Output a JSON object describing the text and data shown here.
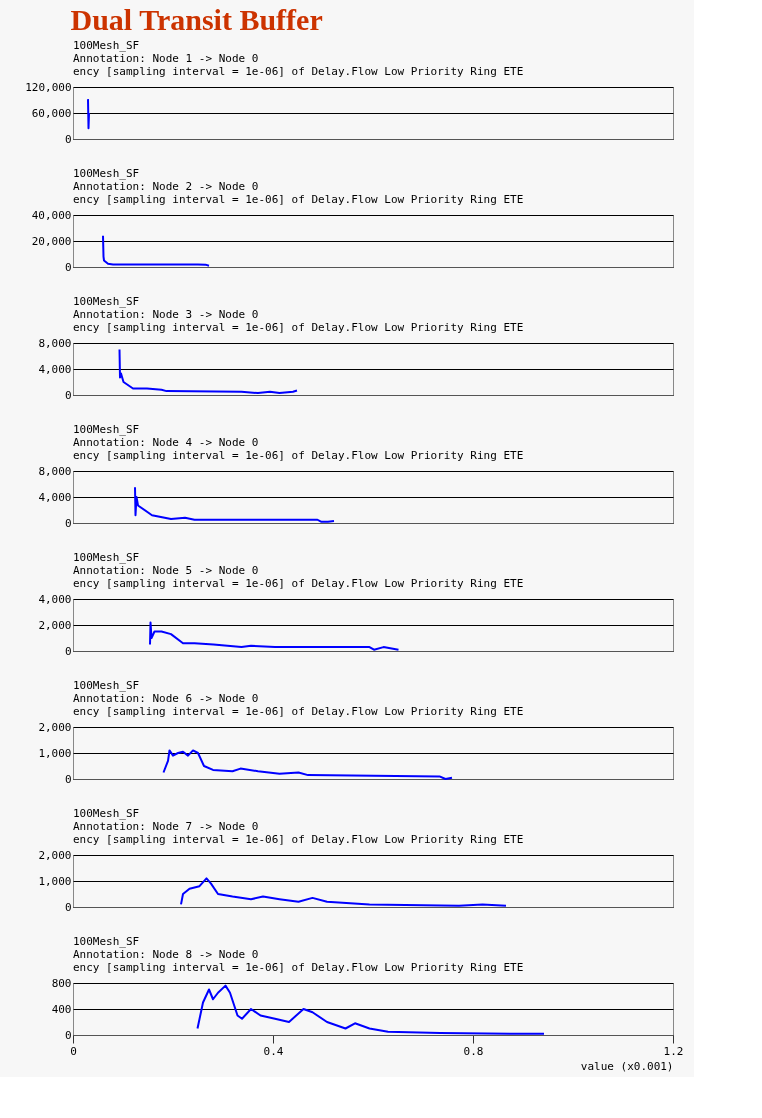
{
  "chart_data": [
    {
      "type": "line",
      "title": "100Mesh_SF",
      "subtitle": "Annotation: Node 1 -> Node 0",
      "annotations": [
        "Dual Transit Buffer",
        "ency [sampling interval = 1e-06] of Delay.Flow Low Priority Ring ETE"
      ],
      "xlim": [
        0,
        1.2
      ],
      "xticks": [
        0,
        0.4,
        0.8,
        1.2
      ],
      "ylim": [
        0,
        120000
      ],
      "yticks": [
        0,
        {
          "value": 60000,
          "label": "60,000"
        },
        {
          "value": 120000,
          "label": "120,000"
        }
      ],
      "grid": "y",
      "tick_labels": "y",
      "series": [
        {
          "color": "#0000ff",
          "x": [
            0.03,
            0.031,
            0.032
          ],
          "values": [
            92000,
            25000,
            60000
          ]
        }
      ]
    },
    {
      "type": "line",
      "title": "100Mesh_SF",
      "subtitle": "Annotation: Node 2 -> Node 0",
      "annotations": [
        "ency [sampling interval = 1e-06] of Delay.Flow Low Priority Ring ETE"
      ],
      "xlim": [
        0,
        1.2
      ],
      "xticks": [
        0,
        0.4,
        0.8,
        1.2
      ],
      "ylim": [
        0,
        40000
      ],
      "yticks": [
        0,
        {
          "value": 20000,
          "label": "20,000"
        },
        {
          "value": 40000,
          "label": "40,000"
        }
      ],
      "grid": "y",
      "tick_labels": "y",
      "series": [
        {
          "color": "#0000ff",
          "x": [
            0.06,
            0.061,
            0.062,
            0.07,
            0.08,
            0.15,
            0.25,
            0.265,
            0.272
          ],
          "values": [
            24000,
            8000,
            5000,
            2500,
            2000,
            2000,
            2000,
            1800,
            1000
          ]
        }
      ]
    },
    {
      "type": "line",
      "title": "100Mesh_SF",
      "subtitle": "Annotation: Node 3 -> Node 0",
      "annotations": [
        "ency [sampling interval = 1e-06] of Delay.Flow Low Priority Ring ETE"
      ],
      "xlim": [
        0,
        1.2
      ],
      "xticks": [
        0,
        0.4,
        0.8,
        1.2
      ],
      "ylim": [
        0,
        8000
      ],
      "yticks": [
        0,
        {
          "value": 4000,
          "label": "4,000"
        },
        {
          "value": 8000,
          "label": "8,000"
        }
      ],
      "grid": "y",
      "tick_labels": "y",
      "series": [
        {
          "color": "#0000ff",
          "x": [
            0.093,
            0.094,
            0.096,
            0.101,
            0.12,
            0.148,
            0.177,
            0.187,
            0.337,
            0.37,
            0.394,
            0.413,
            0.44,
            0.448
          ],
          "values": [
            7000,
            2700,
            3300,
            2000,
            1000,
            1000,
            800,
            600,
            500,
            300,
            500,
            300,
            500,
            700
          ]
        }
      ]
    },
    {
      "type": "line",
      "title": "100Mesh_SF",
      "subtitle": "Annotation: Node 4 -> Node 0",
      "annotations": [
        "ency [sampling interval = 1e-06] of Delay.Flow Low Priority Ring ETE"
      ],
      "xlim": [
        0,
        1.2
      ],
      "xticks": [
        0,
        0.4,
        0.8,
        1.2
      ],
      "ylim": [
        0,
        8000
      ],
      "yticks": [
        0,
        {
          "value": 4000,
          "label": "4,000"
        },
        {
          "value": 8000,
          "label": "8,000"
        }
      ],
      "grid": "y",
      "tick_labels": "y",
      "series": [
        {
          "color": "#0000ff",
          "x": [
            0.124,
            0.125,
            0.127,
            0.13,
            0.158,
            0.196,
            0.224,
            0.243,
            0.489,
            0.496,
            0.51,
            0.522
          ],
          "values": [
            5500,
            1200,
            4000,
            2700,
            1200,
            600,
            800,
            500,
            500,
            200,
            200,
            300
          ]
        }
      ]
    },
    {
      "type": "line",
      "title": "100Mesh_SF",
      "subtitle": "Annotation: Node 5 -> Node 0",
      "annotations": [
        "ency [sampling interval = 1e-06] of Delay.Flow Low Priority Ring ETE"
      ],
      "xlim": [
        0,
        1.2
      ],
      "xticks": [
        0,
        0.4,
        0.8,
        1.2
      ],
      "ylim": [
        0,
        4000
      ],
      "yticks": [
        0,
        {
          "value": 2000,
          "label": "2,000"
        },
        {
          "value": 4000,
          "label": "4,000"
        }
      ],
      "grid": "y",
      "tick_labels": "y",
      "series": [
        {
          "color": "#0000ff",
          "x": [
            0.154,
            0.155,
            0.157,
            0.163,
            0.177,
            0.196,
            0.22,
            0.243,
            0.281,
            0.337,
            0.356,
            0.404,
            0.593,
            0.602,
            0.621,
            0.651
          ],
          "values": [
            500,
            2200,
            1000,
            1500,
            1500,
            1300,
            600,
            600,
            500,
            300,
            400,
            300,
            300,
            100,
            300,
            100
          ]
        }
      ]
    },
    {
      "type": "line",
      "title": "100Mesh_SF",
      "subtitle": "Annotation: Node 6 -> Node 0",
      "annotations": [
        "ency [sampling interval = 1e-06] of Delay.Flow Low Priority Ring ETE"
      ],
      "xlim": [
        0,
        1.2
      ],
      "xticks": [
        0,
        0.4,
        0.8,
        1.2
      ],
      "ylim": [
        0,
        2000
      ],
      "yticks": [
        0,
        {
          "value": 1000,
          "label": "1,000"
        },
        {
          "value": 2000,
          "label": "2,000"
        }
      ],
      "grid": "y",
      "tick_labels": "y",
      "series": [
        {
          "color": "#0000ff",
          "x": [
            0.181,
            0.19,
            0.193,
            0.2,
            0.21,
            0.22,
            0.23,
            0.24,
            0.25,
            0.262,
            0.28,
            0.319,
            0.335,
            0.37,
            0.413,
            0.451,
            0.47,
            0.733,
            0.745,
            0.758
          ],
          "values": [
            250,
            700,
            1100,
            900,
            1000,
            1050,
            900,
            1100,
            1000,
            500,
            350,
            300,
            400,
            300,
            200,
            250,
            150,
            100,
            0,
            50
          ]
        }
      ]
    },
    {
      "type": "line",
      "title": "100Mesh_SF",
      "subtitle": "Annotation: Node 7 -> Node 0",
      "annotations": [
        "ency [sampling interval = 1e-06] of Delay.Flow Low Priority Ring ETE"
      ],
      "xlim": [
        0,
        1.2
      ],
      "xticks": [
        0,
        0.4,
        0.8,
        1.2
      ],
      "ylim": [
        0,
        2000
      ],
      "yticks": [
        0,
        {
          "value": 1000,
          "label": "1,000"
        },
        {
          "value": 2000,
          "label": "2,000"
        }
      ],
      "grid": "y",
      "tick_labels": "y",
      "series": [
        {
          "color": "#0000ff",
          "x": [
            0.216,
            0.22,
            0.233,
            0.253,
            0.267,
            0.276,
            0.29,
            0.319,
            0.356,
            0.38,
            0.413,
            0.451,
            0.479,
            0.508,
            0.593,
            0.772,
            0.819,
            0.866
          ],
          "values": [
            100,
            500,
            700,
            800,
            1100,
            900,
            500,
            400,
            300,
            400,
            300,
            200,
            350,
            200,
            100,
            50,
            100,
            50
          ]
        }
      ]
    },
    {
      "type": "line",
      "title": "100Mesh_SF",
      "subtitle": "Annotation: Node 8 -> Node 0",
      "annotations": [
        "ency [sampling interval = 1e-06] of Delay.Flow Low Priority Ring ETE"
      ],
      "xlabel": "value (x0.001)",
      "xlim": [
        0,
        1.2
      ],
      "xticks": [
        0,
        0.4,
        0.8,
        1.2
      ],
      "ylim": [
        0,
        800
      ],
      "yticks": [
        0,
        400,
        800
      ],
      "grid": "y",
      "series": [
        {
          "color": "#0000ff",
          "x": [
            0.249,
            0.26,
            0.272,
            0.28,
            0.29,
            0.305,
            0.314,
            0.329,
            0.338,
            0.356,
            0.375,
            0.404,
            0.432,
            0.461,
            0.479,
            0.508,
            0.545,
            0.564,
            0.593,
            0.63,
            0.734,
            0.876,
            0.942
          ],
          "values": [
            100,
            500,
            700,
            550,
            650,
            760,
            650,
            300,
            250,
            400,
            300,
            250,
            200,
            400,
            350,
            200,
            100,
            180,
            100,
            50,
            30,
            20,
            20
          ]
        }
      ]
    }
  ]
}
